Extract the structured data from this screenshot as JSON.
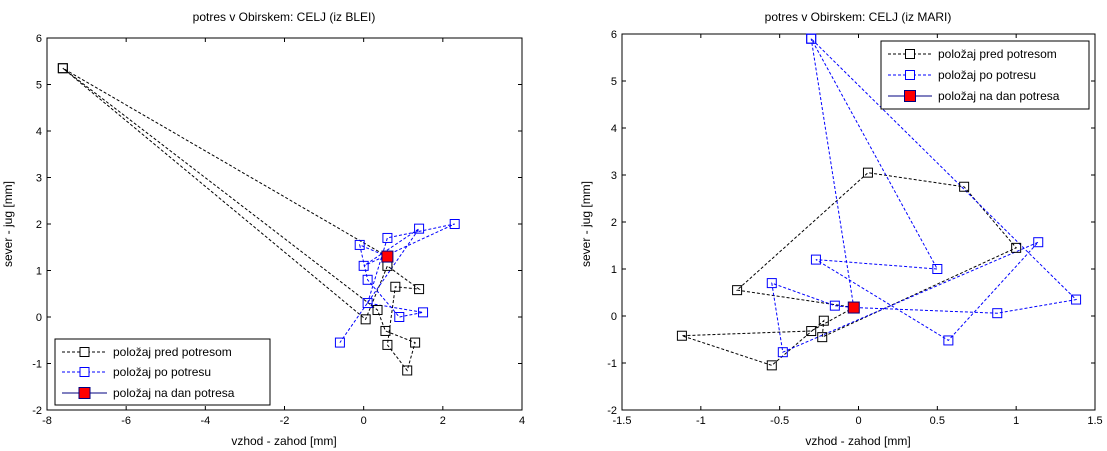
{
  "colors": {
    "pred": "#000000",
    "po": "#0000ff",
    "dan_fill": "#ff0000",
    "dan_edge": "#000080"
  },
  "chart_data": [
    {
      "type": "line",
      "title": "potres v Obirskem: CELJ (iz BLEI)",
      "xlabel": "vzhod - zahod [mm]",
      "ylabel": "sever - jug [mm]",
      "xlim": [
        -8,
        4
      ],
      "ylim": [
        -2,
        6
      ],
      "xticks": [
        -8,
        -6,
        -4,
        -2,
        0,
        2,
        4
      ],
      "yticks": [
        -2,
        -1,
        0,
        1,
        2,
        3,
        4,
        5,
        6
      ],
      "legend_position": "bottom-left",
      "series": [
        {
          "name": "položaj pred potresom",
          "style": "dashed",
          "color": "#000000",
          "points": [
            [
              0.6,
              1.3
            ],
            [
              -7.6,
              5.35
            ],
            [
              0.35,
              0.15
            ],
            [
              0.55,
              -0.3
            ],
            [
              1.3,
              -0.55
            ],
            [
              1.1,
              -1.15
            ],
            [
              0.6,
              -0.6
            ],
            [
              0.8,
              0.65
            ],
            [
              1.4,
              0.6
            ],
            [
              0.6,
              1.1
            ],
            [
              0.05,
              -0.05
            ],
            [
              -7.6,
              5.35
            ]
          ]
        },
        {
          "name": "položaj po potresu",
          "style": "dashed",
          "color": "#0000ff",
          "points": [
            [
              0.6,
              1.3
            ],
            [
              -0.1,
              1.55
            ],
            [
              0.1,
              0.8
            ],
            [
              0.9,
              0.0
            ],
            [
              1.5,
              0.1
            ],
            [
              0.1,
              0.3
            ],
            [
              0.6,
              1.7
            ],
            [
              2.3,
              2.0
            ],
            [
              0.0,
              1.1
            ],
            [
              1.4,
              1.9
            ],
            [
              -0.6,
              -0.55
            ]
          ]
        },
        {
          "name": "položaj na dan potresa",
          "style": "solid",
          "color": "#000080",
          "marker_fill": "#ff0000",
          "points": [
            [
              0.6,
              1.3
            ]
          ]
        }
      ]
    },
    {
      "type": "line",
      "title": "potres v Obirskem: CELJ (iz MARI)",
      "xlabel": "vzhod - zahod [mm]",
      "ylabel": "sever - jug [mm]",
      "xlim": [
        -1.5,
        1.5
      ],
      "ylim": [
        -2,
        6
      ],
      "xticks": [
        -1.5,
        -1,
        -0.5,
        0,
        0.5,
        1,
        1.5
      ],
      "yticks": [
        -2,
        -1,
        0,
        1,
        2,
        3,
        4,
        5,
        6
      ],
      "legend_position": "top-right",
      "series": [
        {
          "name": "položaj pred potresom",
          "style": "dashed",
          "color": "#000000",
          "points": [
            [
              -0.03,
              0.18
            ],
            [
              -0.77,
              0.55
            ],
            [
              0.06,
              3.05
            ],
            [
              0.67,
              2.75
            ],
            [
              1.0,
              1.45
            ],
            [
              -0.23,
              -0.45
            ],
            [
              -0.22,
              -0.1
            ],
            [
              -0.55,
              -1.05
            ],
            [
              -1.12,
              -0.42
            ],
            [
              -0.3,
              -0.32
            ],
            [
              -0.03,
              0.18
            ]
          ]
        },
        {
          "name": "položaj po potresu",
          "style": "dashed",
          "color": "#0000ff",
          "points": [
            [
              -0.03,
              0.18
            ],
            [
              -0.3,
              5.9
            ],
            [
              0.5,
              1.0
            ],
            [
              -0.27,
              1.2
            ],
            [
              0.57,
              -0.52
            ],
            [
              1.14,
              1.57
            ],
            [
              -0.48,
              -0.77
            ],
            [
              -0.55,
              0.7
            ],
            [
              -0.15,
              0.22
            ],
            [
              -0.03,
              0.18
            ],
            [
              0.88,
              0.06
            ],
            [
              1.38,
              0.35
            ],
            [
              -0.3,
              5.9
            ]
          ]
        },
        {
          "name": "položaj na dan potresa",
          "style": "solid",
          "color": "#000080",
          "marker_fill": "#ff0000",
          "points": [
            [
              -0.03,
              0.18
            ]
          ]
        }
      ]
    }
  ]
}
